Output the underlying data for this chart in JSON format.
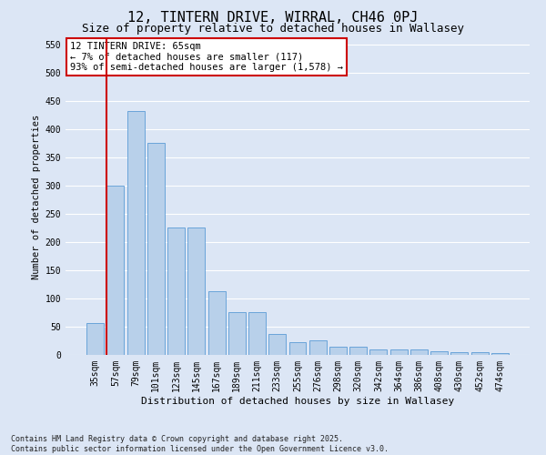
{
  "title": "12, TINTERN DRIVE, WIRRAL, CH46 0PJ",
  "subtitle": "Size of property relative to detached houses in Wallasey",
  "xlabel": "Distribution of detached houses by size in Wallasey",
  "ylabel": "Number of detached properties",
  "categories": [
    "35sqm",
    "57sqm",
    "79sqm",
    "101sqm",
    "123sqm",
    "145sqm",
    "167sqm",
    "189sqm",
    "211sqm",
    "233sqm",
    "255sqm",
    "276sqm",
    "298sqm",
    "320sqm",
    "342sqm",
    "364sqm",
    "386sqm",
    "408sqm",
    "430sqm",
    "452sqm",
    "474sqm"
  ],
  "values": [
    57,
    300,
    432,
    375,
    225,
    225,
    113,
    75,
    75,
    37,
    22,
    25,
    15,
    15,
    10,
    10,
    10,
    6,
    5,
    5,
    3
  ],
  "bar_color": "#b8d0ea",
  "bar_edge_color": "#5b9bd5",
  "background_color": "#dce6f5",
  "grid_color": "#ffffff",
  "vline_color": "#cc0000",
  "annotation_text": "12 TINTERN DRIVE: 65sqm\n← 7% of detached houses are smaller (117)\n93% of semi-detached houses are larger (1,578) →",
  "annotation_box_color": "#ffffff",
  "annotation_box_edge": "#cc0000",
  "ylim": [
    0,
    560
  ],
  "yticks": [
    0,
    50,
    100,
    150,
    200,
    250,
    300,
    350,
    400,
    450,
    500,
    550
  ],
  "footnote": "Contains HM Land Registry data © Crown copyright and database right 2025.\nContains public sector information licensed under the Open Government Licence v3.0.",
  "title_fontsize": 11,
  "subtitle_fontsize": 9,
  "annotation_fontsize": 7.5,
  "footnote_fontsize": 6,
  "tick_fontsize": 7,
  "ylabel_fontsize": 7.5,
  "xlabel_fontsize": 8
}
